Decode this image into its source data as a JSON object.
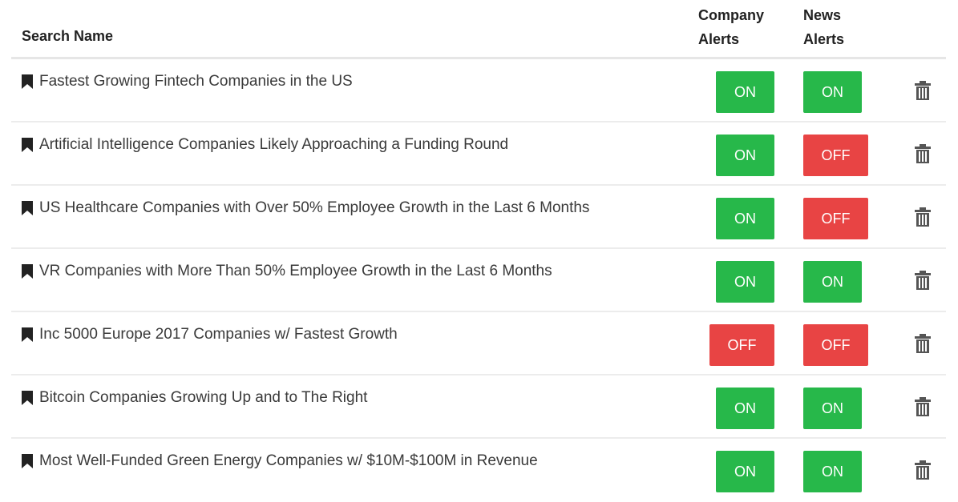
{
  "header": {
    "search_name": "Search Name",
    "company_alerts_line1": "Company",
    "company_alerts_line2": "Alerts",
    "news_alerts_line1": "News",
    "news_alerts_line2": "Alerts"
  },
  "rows": [
    {
      "name": "Fastest Growing Fintech Companies in the US",
      "company": "ON",
      "news": "ON"
    },
    {
      "name": "Artificial Intelligence Companies Likely Approaching a Funding Round",
      "company": "ON",
      "news": "OFF"
    },
    {
      "name": "US Healthcare Companies with Over 50% Employee Growth in the Last 6 Months",
      "company": "ON",
      "news": "OFF"
    },
    {
      "name": "VR Companies with More Than 50% Employee Growth in the Last 6 Months",
      "company": "ON",
      "news": "ON"
    },
    {
      "name": "Inc 5000 Europe 2017 Companies w/ Fastest Growth",
      "company": "OFF",
      "news": "OFF"
    },
    {
      "name": "Bitcoin Companies Growing Up and to The Right",
      "company": "ON",
      "news": "ON"
    },
    {
      "name": "Most Well-Funded Green Energy Companies w/ $10M-$100M in Revenue",
      "company": "ON",
      "news": "ON"
    }
  ],
  "colors": {
    "on": "#27b84a",
    "off": "#e84444"
  },
  "icons": {
    "bookmark": "bookmark-icon",
    "delete": "trash-icon"
  }
}
